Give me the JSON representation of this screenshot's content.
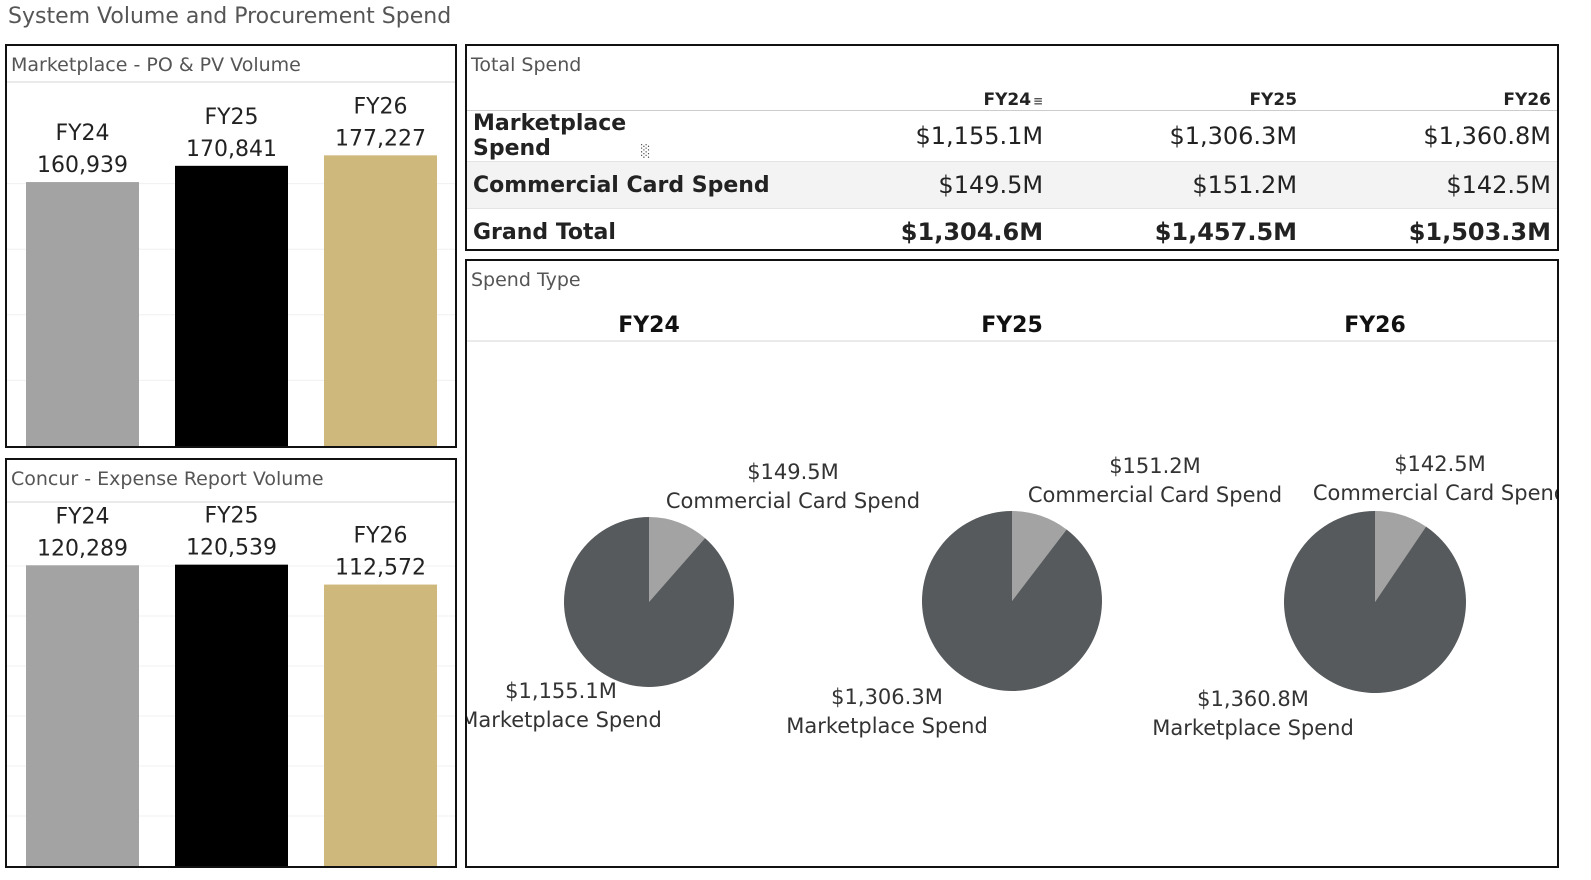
{
  "dashboard": {
    "title": "System Volume and Procurement Spend"
  },
  "colors": {
    "fy24": "#a2a3a2",
    "fy25": "#000000",
    "fy26": "#cfb87c",
    "pie_major": "#565a5c",
    "pie_minor": "#a2a3a2"
  },
  "chart_data": [
    {
      "type": "bar",
      "title": "Marketplace - PO & PV Volume",
      "categories": [
        "FY24",
        "FY25",
        "FY26"
      ],
      "values": [
        160939,
        170841,
        177227
      ],
      "value_labels": [
        "160,939",
        "170,841",
        "177,227"
      ],
      "ylim": [
        0,
        200000
      ],
      "grid": true
    },
    {
      "type": "bar",
      "title": "Concur - Expense Report Volume",
      "categories": [
        "FY24",
        "FY25",
        "FY26"
      ],
      "values": [
        120289,
        120539,
        112572
      ],
      "value_labels": [
        "120,289",
        "120,539",
        "112,572"
      ],
      "ylim": [
        0,
        140000
      ],
      "grid": true
    },
    {
      "type": "table",
      "title": "Total Spend",
      "columns": [
        "FY24",
        "FY25",
        "FY26"
      ],
      "rows": [
        {
          "label": "Marketplace Spend",
          "values": [
            "$1,155.1M",
            "$1,306.3M",
            "$1,360.8M"
          ]
        },
        {
          "label": "Commercial Card Spend",
          "values": [
            "$149.5M",
            "$151.2M",
            "$142.5M"
          ]
        },
        {
          "label": "Grand Total",
          "values": [
            "$1,304.6M",
            "$1,457.5M",
            "$1,503.3M"
          ]
        }
      ]
    },
    {
      "type": "pie",
      "title": "Spend Type",
      "pies": [
        {
          "name": "FY24",
          "slices": [
            {
              "label": "Commercial Card Spend",
              "value": 149.5,
              "value_label": "$149.5M"
            },
            {
              "label": "Marketplace Spend",
              "value": 1155.1,
              "value_label": "$1,155.1M"
            }
          ]
        },
        {
          "name": "FY25",
          "slices": [
            {
              "label": "Commercial Card Spend",
              "value": 151.2,
              "value_label": "$151.2M"
            },
            {
              "label": "Marketplace Spend",
              "value": 1306.3,
              "value_label": "$1,306.3M"
            }
          ]
        },
        {
          "name": "FY26",
          "slices": [
            {
              "label": "Commercial Card Spend",
              "value": 142.5,
              "value_label": "$142.5M"
            },
            {
              "label": "Marketplace Spend",
              "value": 1360.8,
              "value_label": "$1,360.8M"
            }
          ]
        }
      ]
    }
  ]
}
